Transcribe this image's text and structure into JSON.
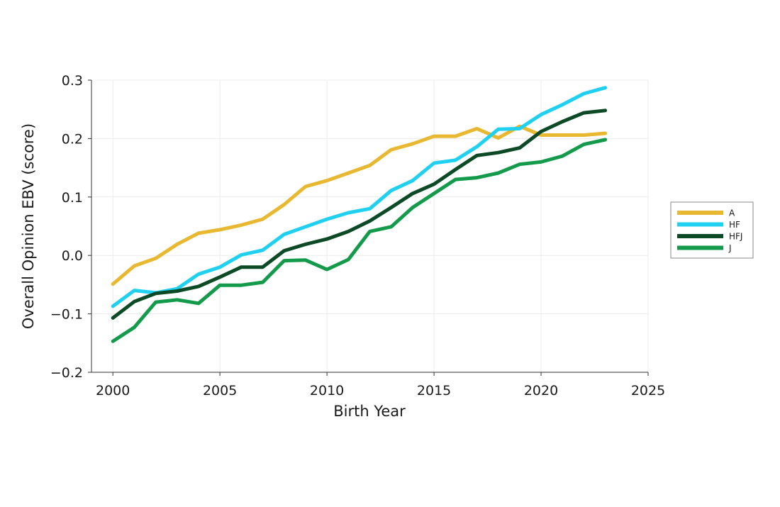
{
  "chart_data": {
    "type": "line",
    "title": "",
    "xlabel": "Birth Year",
    "ylabel": "Overall Opinion EBV (score)",
    "xlim": [
      1999,
      2025
    ],
    "ylim": [
      -0.2,
      0.3
    ],
    "xticks": [
      2000,
      2005,
      2010,
      2015,
      2020,
      2025
    ],
    "xtick_labels": [
      "2000",
      "2005",
      "2010",
      "2015",
      "2020",
      "2025"
    ],
    "yticks": [
      -0.2,
      -0.1,
      0.0,
      0.1,
      0.2,
      0.3
    ],
    "ytick_labels": [
      "−0.2",
      "−0.1",
      "0.0",
      "0.1",
      "0.2",
      "0.3"
    ],
    "grid": true,
    "legend_position": "right",
    "x": [
      2000,
      2001,
      2002,
      2003,
      2004,
      2005,
      2006,
      2007,
      2008,
      2009,
      2010,
      2011,
      2012,
      2013,
      2014,
      2015,
      2016,
      2017,
      2018,
      2019,
      2020,
      2021,
      2022,
      2023
    ],
    "series": [
      {
        "name": "A",
        "color": "#E8B830",
        "values": [
          -0.049,
          -0.018,
          -0.005,
          0.019,
          0.038,
          0.044,
          0.052,
          0.062,
          0.087,
          0.118,
          0.128,
          0.141,
          0.154,
          0.181,
          0.191,
          0.204,
          0.204,
          0.217,
          0.201,
          0.221,
          0.206,
          0.206,
          0.206,
          0.209
        ]
      },
      {
        "name": "HF",
        "color": "#1FD0F0",
        "values": [
          -0.087,
          -0.06,
          -0.064,
          -0.057,
          -0.032,
          -0.02,
          0.001,
          0.009,
          0.036,
          0.049,
          0.062,
          0.073,
          0.08,
          0.111,
          0.128,
          0.158,
          0.163,
          0.186,
          0.216,
          0.217,
          0.241,
          0.258,
          0.277,
          0.287
        ]
      },
      {
        "name": "HFJ",
        "color": "#0B4A24",
        "values": [
          -0.107,
          -0.079,
          -0.065,
          -0.061,
          -0.053,
          -0.037,
          -0.02,
          -0.02,
          0.008,
          0.019,
          0.028,
          0.041,
          0.059,
          0.082,
          0.106,
          0.122,
          0.147,
          0.171,
          0.176,
          0.184,
          0.212,
          0.229,
          0.244,
          0.248
        ]
      },
      {
        "name": "J",
        "color": "#139A4A",
        "values": [
          -0.147,
          -0.123,
          -0.08,
          -0.076,
          -0.082,
          -0.051,
          -0.051,
          -0.046,
          -0.009,
          -0.008,
          -0.024,
          -0.007,
          0.041,
          0.049,
          0.082,
          0.106,
          0.13,
          0.133,
          0.141,
          0.156,
          0.16,
          0.17,
          0.19,
          0.198
        ]
      }
    ]
  }
}
